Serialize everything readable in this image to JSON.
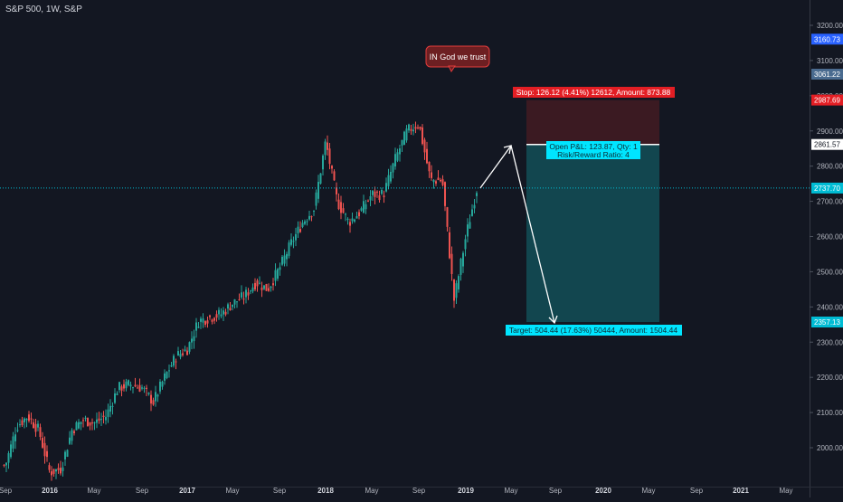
{
  "header": {
    "title": "S&P 500, 1W, S&P"
  },
  "callout": {
    "text": "IN God we trust"
  },
  "position": {
    "stop_label": "Stop: 126.12 (4.41%) 12612, Amount: 873.88",
    "pnl_line1": "Open P&L: 123.87, Qty: 1",
    "pnl_line2": "Risk/Reward Ratio: 4",
    "target_label": "Target: 504.44 (17.63%) 50444, Amount: 1504.44",
    "entry_price": 2861.57,
    "stop_price": 2987.69,
    "target_price": 2357.13
  },
  "price_tags": [
    {
      "label": "3160.73",
      "value": 3160.73,
      "color": "#2962ff"
    },
    {
      "label": "3061.22",
      "value": 3061.22,
      "color": "#4a6b8f"
    },
    {
      "label": "2987.69",
      "value": 2987.69,
      "color": "#e31e24"
    },
    {
      "label": "2861.57",
      "value": 2861.57,
      "color": "#ffffff"
    },
    {
      "label": "2737.70",
      "value": 2737.7,
      "color": "#00bcd4"
    },
    {
      "label": "2357.13",
      "value": 2357.13,
      "color": "#00bcd4"
    }
  ],
  "colors": {
    "background": "#131722",
    "up": "#26a69a",
    "down": "#ef5350",
    "stop_zone": "#3b1a22",
    "target_zone": "#12464f",
    "axis_text": "#b2b5be"
  },
  "chart_data": {
    "type": "candlestick",
    "title": "S&P 500, 1W, S&P",
    "y_ticks": [
      "3200.00",
      "3100.00",
      "3000.00",
      "2900.00",
      "2800.00",
      "2700.00",
      "2600.00",
      "2500.00",
      "2400.00",
      "2300.00",
      "2200.00",
      "2100.00",
      "2000.00"
    ],
    "x_ticks": [
      "Sep",
      "2016",
      "May",
      "Sep",
      "2017",
      "May",
      "Sep",
      "2018",
      "May",
      "Sep",
      "2019",
      "May",
      "Sep",
      "2020",
      "May",
      "Sep",
      "2021",
      "May"
    ],
    "ylim": [
      1910,
      3245
    ],
    "current_price": 2737.7,
    "weekly_close_path": [
      [
        "2015-09",
        1950
      ],
      [
        "2015-10",
        2060
      ],
      [
        "2015-11",
        2090
      ],
      [
        "2015-12",
        2050
      ],
      [
        "2016-01",
        1930
      ],
      [
        "2016-02",
        1940
      ],
      [
        "2016-03",
        2050
      ],
      [
        "2016-04",
        2080
      ],
      [
        "2016-05",
        2070
      ],
      [
        "2016-06",
        2090
      ],
      [
        "2016-07",
        2170
      ],
      [
        "2016-08",
        2180
      ],
      [
        "2016-09",
        2170
      ],
      [
        "2016-10",
        2130
      ],
      [
        "2016-11",
        2200
      ],
      [
        "2016-12",
        2260
      ],
      [
        "2017-01",
        2280
      ],
      [
        "2017-02",
        2360
      ],
      [
        "2017-03",
        2370
      ],
      [
        "2017-04",
        2380
      ],
      [
        "2017-05",
        2410
      ],
      [
        "2017-06",
        2430
      ],
      [
        "2017-07",
        2470
      ],
      [
        "2017-08",
        2450
      ],
      [
        "2017-09",
        2510
      ],
      [
        "2017-10",
        2580
      ],
      [
        "2017-11",
        2640
      ],
      [
        "2017-12",
        2680
      ],
      [
        "2018-01",
        2870
      ],
      [
        "2018-02",
        2700
      ],
      [
        "2018-03",
        2640
      ],
      [
        "2018-04",
        2670
      ],
      [
        "2018-05",
        2720
      ],
      [
        "2018-06",
        2720
      ],
      [
        "2018-07",
        2820
      ],
      [
        "2018-08",
        2900
      ],
      [
        "2018-09",
        2920
      ],
      [
        "2018-10",
        2760
      ],
      [
        "2018-11",
        2760
      ],
      [
        "2018-12",
        2420
      ],
      [
        "2019-01",
        2600
      ],
      [
        "2019-02",
        2740
      ]
    ]
  }
}
